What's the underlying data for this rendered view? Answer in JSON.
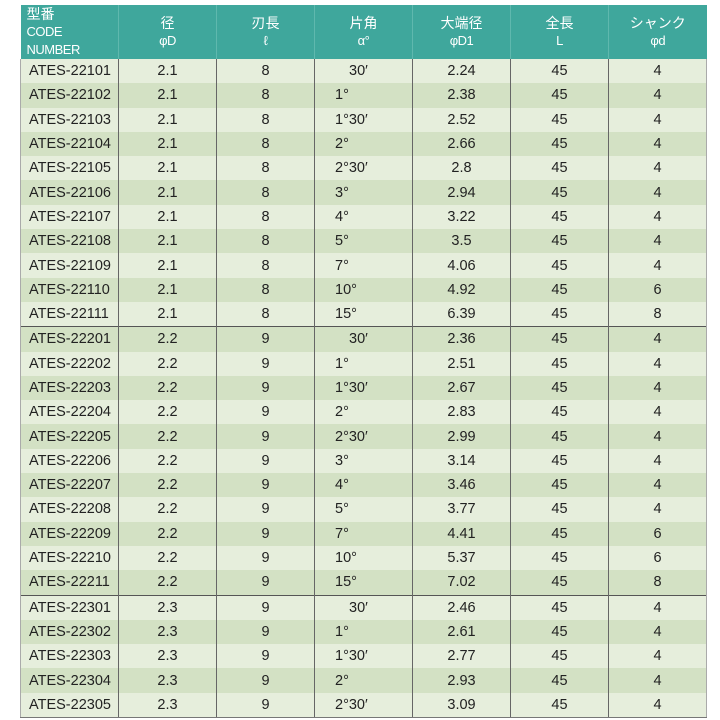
{
  "header": {
    "columns": [
      {
        "jp": "型番",
        "en": "CODE NUMBER"
      },
      {
        "jp": "径",
        "en": "φD"
      },
      {
        "jp": "刃長",
        "en": "ℓ"
      },
      {
        "jp": "片角",
        "en": "α°"
      },
      {
        "jp": "大端径",
        "en": "φD1"
      },
      {
        "jp": "全長",
        "en": "L"
      },
      {
        "jp": "シャンク",
        "en": "φd"
      }
    ]
  },
  "colors": {
    "header": "#3fa79c",
    "row_light": "#e6eedc",
    "row_dark": "#d3e1c4"
  },
  "rows": [
    [
      "ATES-22101",
      "2.1",
      "8",
      "30′",
      "2.24",
      "45",
      "4"
    ],
    [
      "ATES-22102",
      "2.1",
      "8",
      "1°",
      "2.38",
      "45",
      "4"
    ],
    [
      "ATES-22103",
      "2.1",
      "8",
      "1°30′",
      "2.52",
      "45",
      "4"
    ],
    [
      "ATES-22104",
      "2.1",
      "8",
      "2°",
      "2.66",
      "45",
      "4"
    ],
    [
      "ATES-22105",
      "2.1",
      "8",
      "2°30′",
      "2.8",
      "45",
      "4"
    ],
    [
      "ATES-22106",
      "2.1",
      "8",
      "3°",
      "2.94",
      "45",
      "4"
    ],
    [
      "ATES-22107",
      "2.1",
      "8",
      "4°",
      "3.22",
      "45",
      "4"
    ],
    [
      "ATES-22108",
      "2.1",
      "8",
      "5°",
      "3.5",
      "45",
      "4"
    ],
    [
      "ATES-22109",
      "2.1",
      "8",
      "7°",
      "4.06",
      "45",
      "4"
    ],
    [
      "ATES-22110",
      "2.1",
      "8",
      "10°",
      "4.92",
      "45",
      "6"
    ],
    [
      "ATES-22111",
      "2.1",
      "8",
      "15°",
      "6.39",
      "45",
      "8"
    ],
    [
      "ATES-22201",
      "2.2",
      "9",
      "30′",
      "2.36",
      "45",
      "4"
    ],
    [
      "ATES-22202",
      "2.2",
      "9",
      "1°",
      "2.51",
      "45",
      "4"
    ],
    [
      "ATES-22203",
      "2.2",
      "9",
      "1°30′",
      "2.67",
      "45",
      "4"
    ],
    [
      "ATES-22204",
      "2.2",
      "9",
      "2°",
      "2.83",
      "45",
      "4"
    ],
    [
      "ATES-22205",
      "2.2",
      "9",
      "2°30′",
      "2.99",
      "45",
      "4"
    ],
    [
      "ATES-22206",
      "2.2",
      "9",
      "3°",
      "3.14",
      "45",
      "4"
    ],
    [
      "ATES-22207",
      "2.2",
      "9",
      "4°",
      "3.46",
      "45",
      "4"
    ],
    [
      "ATES-22208",
      "2.2",
      "9",
      "5°",
      "3.77",
      "45",
      "4"
    ],
    [
      "ATES-22209",
      "2.2",
      "9",
      "7°",
      "4.41",
      "45",
      "6"
    ],
    [
      "ATES-22210",
      "2.2",
      "9",
      "10°",
      "5.37",
      "45",
      "6"
    ],
    [
      "ATES-22211",
      "2.2",
      "9",
      "15°",
      "7.02",
      "45",
      "8"
    ],
    [
      "ATES-22301",
      "2.3",
      "9",
      "30′",
      "2.46",
      "45",
      "4"
    ],
    [
      "ATES-22302",
      "2.3",
      "9",
      "1°",
      "2.61",
      "45",
      "4"
    ],
    [
      "ATES-22303",
      "2.3",
      "9",
      "1°30′",
      "2.77",
      "45",
      "4"
    ],
    [
      "ATES-22304",
      "2.3",
      "9",
      "2°",
      "2.93",
      "45",
      "4"
    ],
    [
      "ATES-22305",
      "2.3",
      "9",
      "2°30′",
      "3.09",
      "45",
      "4"
    ]
  ]
}
